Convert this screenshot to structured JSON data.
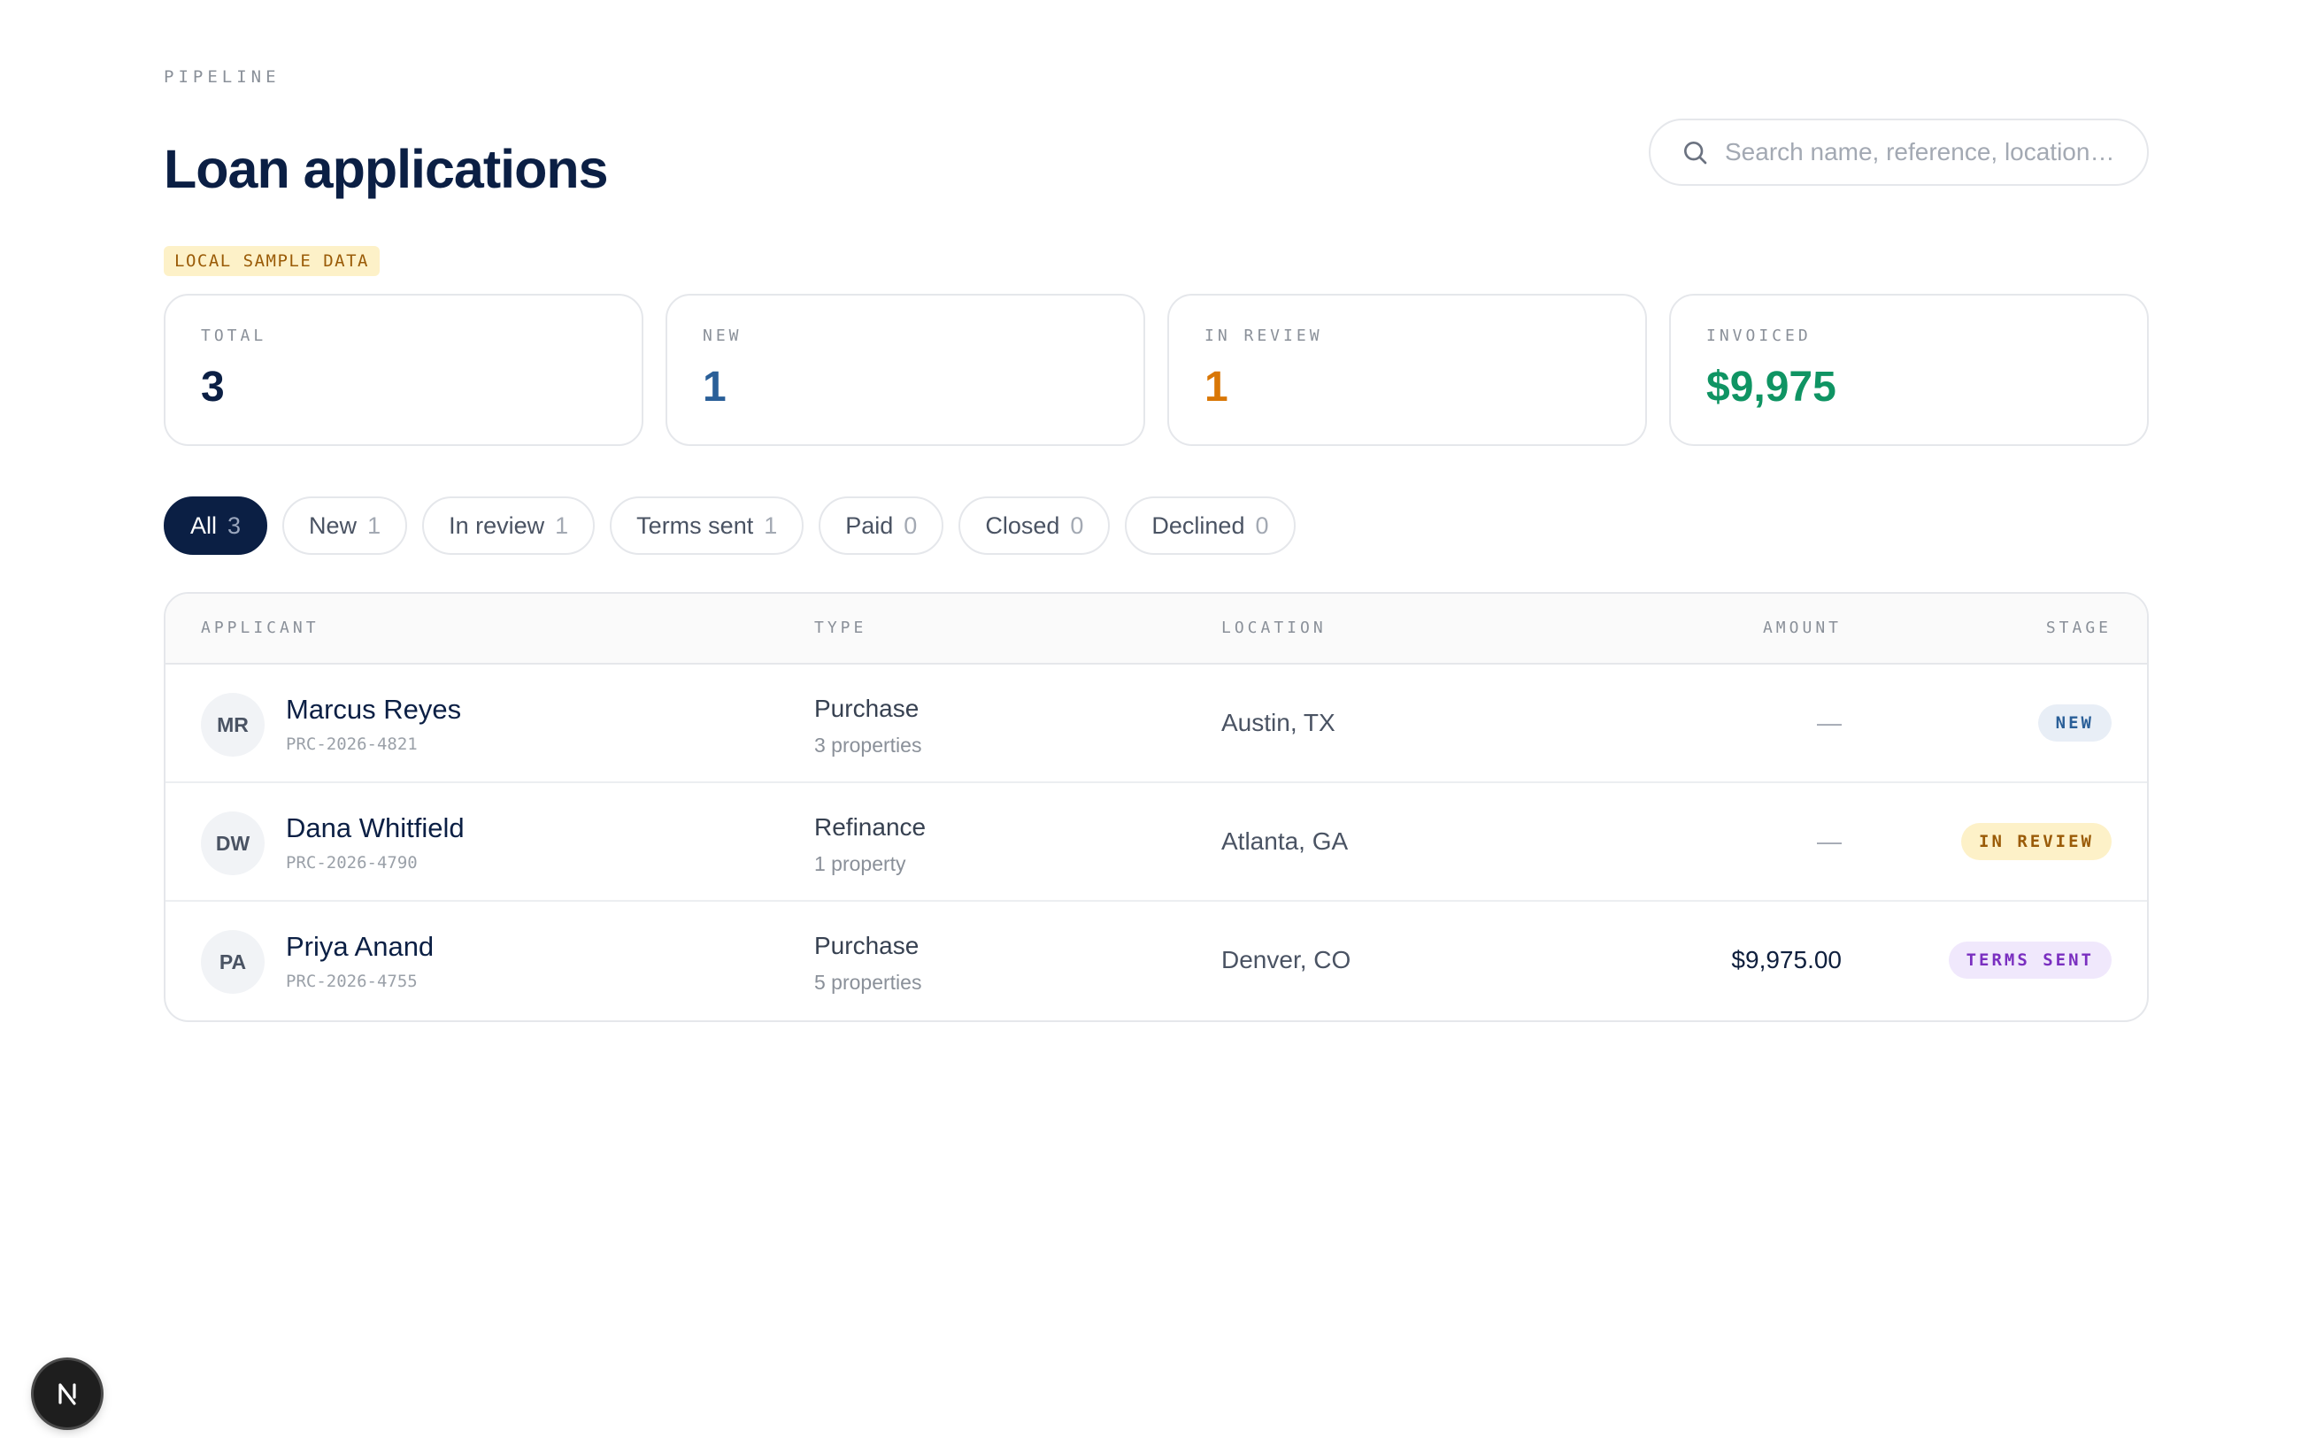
{
  "header": {
    "eyebrow": "PIPELINE",
    "title": "Loan applications",
    "badge": "LOCAL SAMPLE DATA"
  },
  "search": {
    "placeholder": "Search name, reference, location…",
    "value": ""
  },
  "stats": [
    {
      "label": "TOTAL",
      "value": "3",
      "color": "#0b1f44"
    },
    {
      "label": "NEW",
      "value": "1",
      "color": "#2a5f98"
    },
    {
      "label": "IN REVIEW",
      "value": "1",
      "color": "#d97706"
    },
    {
      "label": "INVOICED",
      "value": "$9,975",
      "color": "#0f9463"
    }
  ],
  "filters": [
    {
      "label": "All",
      "count": "3",
      "active": true
    },
    {
      "label": "New",
      "count": "1",
      "active": false
    },
    {
      "label": "In review",
      "count": "1",
      "active": false
    },
    {
      "label": "Terms sent",
      "count": "1",
      "active": false
    },
    {
      "label": "Paid",
      "count": "0",
      "active": false
    },
    {
      "label": "Closed",
      "count": "0",
      "active": false
    },
    {
      "label": "Declined",
      "count": "0",
      "active": false
    }
  ],
  "table": {
    "columns": {
      "applicant": "APPLICANT",
      "type": "TYPE",
      "location": "LOCATION",
      "amount": "AMOUNT",
      "stage": "STAGE"
    },
    "rows": [
      {
        "initials": "MR",
        "name": "Marcus Reyes",
        "reference": "PRC-2026-4821",
        "type": "Purchase",
        "properties": "3 properties",
        "location": "Austin, TX",
        "amount": "—",
        "stage": "NEW",
        "stage_bg": "#e8eef6",
        "stage_fg": "#2a5f98"
      },
      {
        "initials": "DW",
        "name": "Dana Whitfield",
        "reference": "PRC-2026-4790",
        "type": "Refinance",
        "properties": "1 property",
        "location": "Atlanta, GA",
        "amount": "—",
        "stage": "IN REVIEW",
        "stage_bg": "#fdf1c8",
        "stage_fg": "#9a5b07"
      },
      {
        "initials": "PA",
        "name": "Priya Anand",
        "reference": "PRC-2026-4755",
        "type": "Purchase",
        "properties": "5 properties",
        "location": "Denver, CO",
        "amount": "$9,975.00",
        "stage": "TERMS SENT",
        "stage_bg": "#f0e8fc",
        "stage_fg": "#7a2fc0"
      }
    ]
  },
  "icons": {
    "search": "search-icon",
    "nextjs": "nextjs-logo-icon"
  }
}
